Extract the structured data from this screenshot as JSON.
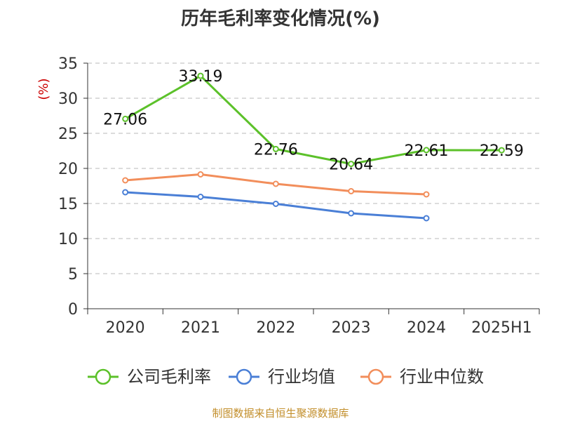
{
  "chart_data": {
    "type": "line",
    "title": "历年毛利率变化情况(%)",
    "ylabel": "(%)",
    "xlabel": "",
    "categories": [
      "2020",
      "2021",
      "2022",
      "2023",
      "2024",
      "2025H1"
    ],
    "ylim": [
      0,
      35
    ],
    "yticks": [
      0,
      5,
      10,
      15,
      20,
      25,
      30,
      35
    ],
    "grid": true,
    "legend_position": "bottom",
    "series": [
      {
        "name": "公司毛利率",
        "color": "#5cc12a",
        "values": [
          27.06,
          33.19,
          22.76,
          20.64,
          22.61,
          22.59
        ],
        "labels": [
          "27.06",
          "33.19",
          "22.76",
          "20.64",
          "22.61",
          "22.59"
        ]
      },
      {
        "name": "行业均值",
        "color": "#4a7fd6",
        "values": [
          16.6,
          15.95,
          14.95,
          13.6,
          12.9,
          null
        ]
      },
      {
        "name": "行业中位数",
        "color": "#f28e5b",
        "values": [
          18.3,
          19.15,
          17.8,
          16.75,
          16.3,
          null
        ]
      }
    ]
  },
  "footer": "制图数据来自恒生聚源数据库"
}
